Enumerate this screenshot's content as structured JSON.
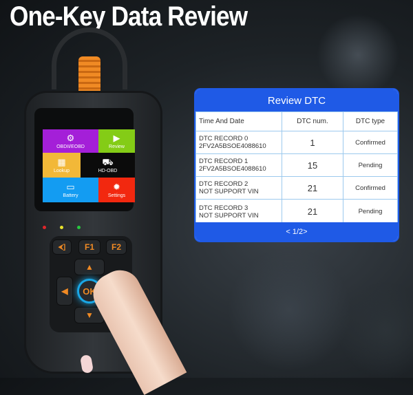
{
  "headline": "One-Key Data Review",
  "device": {
    "tiles": [
      {
        "label": "OBDII/EOBD",
        "icon": "engine-icon",
        "color": "#a41fd8"
      },
      {
        "label": "Review",
        "icon": "play-screen-icon",
        "color": "#84cc16"
      },
      {
        "label": "Lookup",
        "icon": "calendar-icon",
        "color": "#f2b838"
      },
      {
        "label": "HD-OBD",
        "icon": "truck-icon",
        "color": "#0b0b0b"
      },
      {
        "label": "Battery",
        "icon": "battery-icon",
        "color": "#139cf2"
      },
      {
        "label": "Settings",
        "icon": "gear-icon",
        "color": "#f2280f"
      }
    ],
    "leds": [
      "#e0262a",
      "#e8e22b",
      "#27c93f"
    ],
    "keys": {
      "back": "⮜]",
      "f1": "F1",
      "f2": "F2",
      "ok": "OK"
    }
  },
  "review_dtc": {
    "title": "Review DTC",
    "columns": [
      "Time And Date",
      "DTC num.",
      "DTC type"
    ],
    "rows": [
      {
        "record": "DTC RECORD 0",
        "vin": "2FV2A5BSOE4088610",
        "num": "1",
        "type": "Confirmed"
      },
      {
        "record": "DTC RECORD 1",
        "vin": "2FV2A5BSOE4088610",
        "num": "15",
        "type": "Pending"
      },
      {
        "record": "DTC RECORD 2",
        "vin": "NOT SUPPORT VIN",
        "num": "21",
        "type": "Confirmed"
      },
      {
        "record": "DTC RECORD 3",
        "vin": "NOT SUPPORT VIN",
        "num": "21",
        "type": "Pending"
      }
    ],
    "pager": "< 1/2>",
    "accent": "#1f5ae6"
  }
}
